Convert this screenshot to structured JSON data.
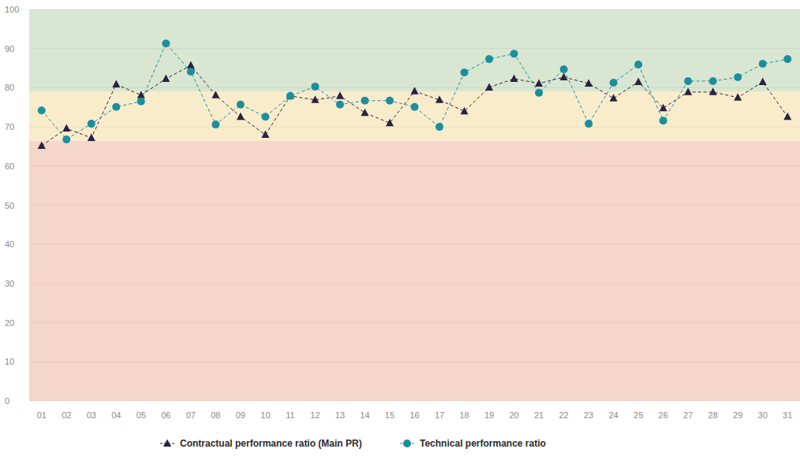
{
  "chart_data": {
    "type": "line",
    "categories": [
      "01",
      "02",
      "03",
      "04",
      "05",
      "06",
      "07",
      "08",
      "09",
      "10",
      "11",
      "12",
      "13",
      "14",
      "15",
      "16",
      "17",
      "18",
      "19",
      "20",
      "21",
      "22",
      "23",
      "24",
      "25",
      "26",
      "27",
      "28",
      "29",
      "30",
      "31"
    ],
    "series": [
      {
        "name": "Contractual performance ratio (Main PR)",
        "color": "#2b2140",
        "marker": "triangle",
        "line_style": "dashed",
        "values": [
          65.2,
          69.6,
          67.2,
          80.9,
          78.1,
          82.3,
          85.7,
          78.1,
          72.6,
          68.0,
          77.9,
          76.9,
          77.9,
          73.6,
          71.0,
          79.1,
          76.9,
          74.0,
          80.1,
          82.3,
          81.1,
          82.7,
          81.1,
          77.3,
          81.5,
          74.8,
          78.9,
          78.9,
          77.5,
          81.5,
          72.6
        ]
      },
      {
        "name": "Technical performance ratio",
        "color": "#1b8e9f",
        "marker": "circle",
        "line_style": "dashed",
        "values": [
          74.2,
          66.8,
          70.8,
          75.1,
          76.5,
          91.3,
          84.1,
          70.6,
          75.7,
          72.6,
          77.9,
          80.3,
          75.7,
          76.7,
          76.7,
          75.1,
          70.0,
          83.9,
          87.3,
          88.7,
          78.7,
          84.7,
          70.8,
          81.3,
          85.9,
          71.6,
          81.7,
          81.7,
          82.7,
          86.1,
          87.3
        ]
      }
    ],
    "bands": [
      {
        "from": 0,
        "to": 66.5,
        "color": "#f5d6ca"
      },
      {
        "from": 66.5,
        "to": 79,
        "color": "#f8eccb"
      },
      {
        "from": 79,
        "to": 100,
        "color": "#d9e6d1"
      }
    ],
    "ylim": [
      0,
      100
    ],
    "yticks": [
      0,
      10,
      20,
      30,
      40,
      50,
      60,
      70,
      80,
      90,
      100
    ],
    "grid": true,
    "legend": "bottom"
  }
}
